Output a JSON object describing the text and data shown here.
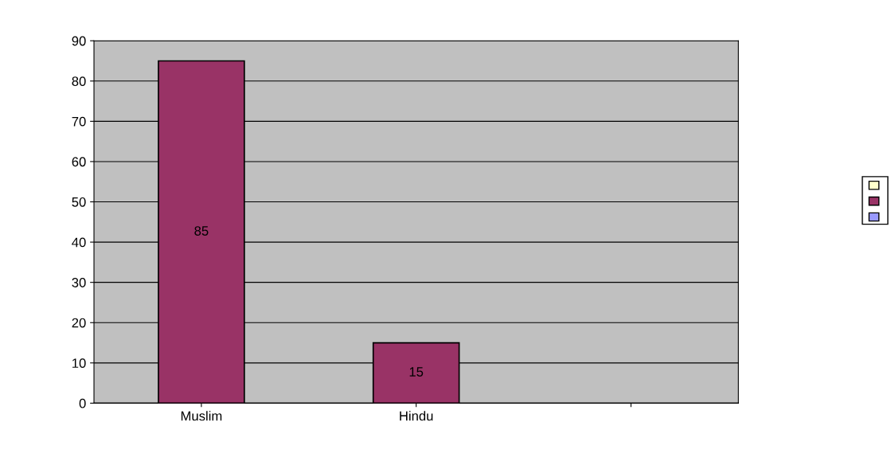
{
  "chart_data": {
    "type": "bar",
    "categories": [
      "Muslim",
      "Hindu",
      null
    ],
    "series": [
      {
        "color": "#993366",
        "values": [
          85,
          15,
          null
        ]
      }
    ],
    "ylim": [
      0,
      90
    ],
    "yticks": [
      0,
      10,
      20,
      30,
      40,
      50,
      60,
      70,
      80,
      90
    ],
    "grid": "y",
    "data_labels": true
  }
}
